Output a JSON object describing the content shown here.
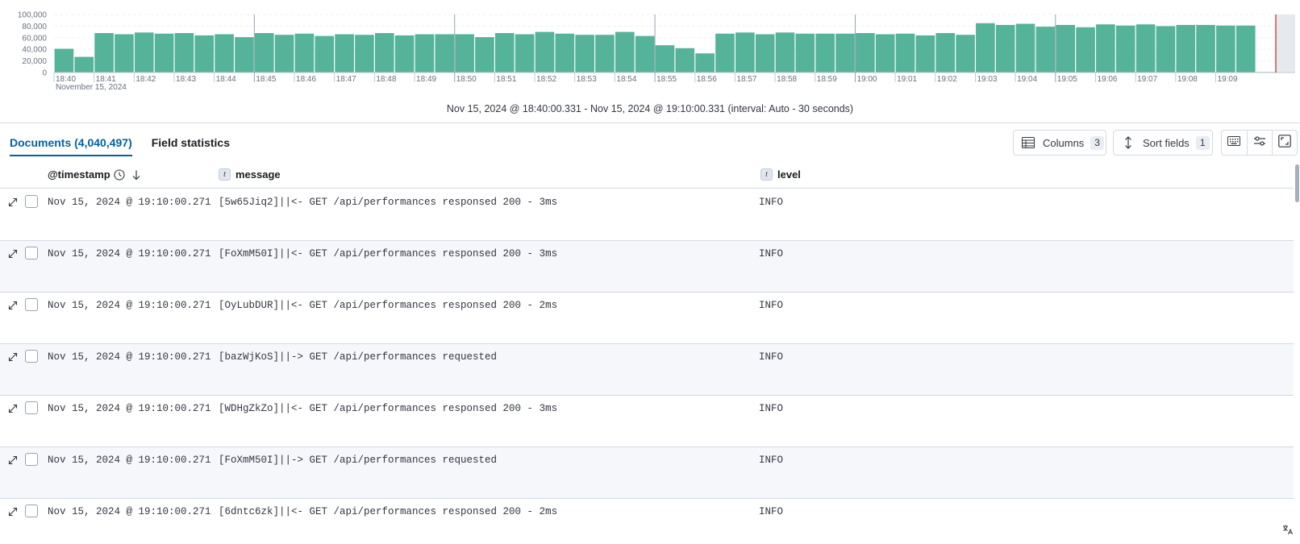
{
  "chart_data": {
    "type": "bar",
    "title": "",
    "xlabel": "",
    "ylabel": "",
    "date_label": "November 15, 2024",
    "ylim": [
      0,
      100000
    ],
    "y_ticks": [
      "100,000",
      "80,000",
      "60,000",
      "40,000",
      "20,000",
      "0"
    ],
    "x_ticks": [
      "18:40",
      "18:41",
      "18:42",
      "18:43",
      "18:44",
      "18:45",
      "18:46",
      "18:47",
      "18:48",
      "18:49",
      "18:50",
      "18:51",
      "18:52",
      "18:53",
      "18:54",
      "18:55",
      "18:56",
      "18:57",
      "18:58",
      "18:59",
      "19:00",
      "19:01",
      "19:02",
      "19:03",
      "19:04",
      "19:05",
      "19:06",
      "19:07",
      "19:08",
      "19:09"
    ],
    "bar_color": "#54b399",
    "values": [
      41000,
      27000,
      68000,
      66000,
      69000,
      67000,
      68000,
      64000,
      66000,
      61000,
      68000,
      65000,
      67000,
      63000,
      66000,
      65000,
      68000,
      64000,
      66000,
      66000,
      66000,
      61000,
      68000,
      66000,
      70000,
      67000,
      65000,
      65000,
      70000,
      63000,
      47000,
      42000,
      33000,
      67000,
      69000,
      66000,
      69000,
      67000,
      67000,
      67000,
      68000,
      66000,
      67000,
      64000,
      68000,
      65000,
      85000,
      82000,
      84000,
      79000,
      82000,
      78000,
      83000,
      81000,
      83000,
      80000,
      82000,
      82000,
      81000,
      81000,
      1000
    ]
  },
  "time_range": "Nov 15, 2024 @ 18:40:00.331 - Nov 15, 2024 @ 19:10:00.331 (interval: Auto - 30 seconds)",
  "tabs": [
    {
      "label": "Documents (4,040,497)"
    },
    {
      "label": "Field statistics"
    }
  ],
  "toolbar": {
    "columns_label": "Columns",
    "columns_count": "3",
    "sort_label": "Sort fields",
    "sort_count": "1",
    "icons": [
      "keyboard-icon",
      "display-settings-icon",
      "fullscreen-icon"
    ]
  },
  "columns": {
    "timestamp": "@timestamp",
    "message": "message",
    "level": "level",
    "type_token": "t"
  },
  "rows": [
    {
      "timestamp": "Nov 15, 2024 @ 19:10:00.271",
      "message": "[5w65Jiq2]||<- GET /api/performances responsed 200 - 3ms",
      "level": "INFO"
    },
    {
      "timestamp": "Nov 15, 2024 @ 19:10:00.271",
      "message": "[FoXmM50I]||<- GET /api/performances responsed 200 - 3ms",
      "level": "INFO"
    },
    {
      "timestamp": "Nov 15, 2024 @ 19:10:00.271",
      "message": "[OyLubDUR]||<- GET /api/performances responsed 200 - 2ms",
      "level": "INFO"
    },
    {
      "timestamp": "Nov 15, 2024 @ 19:10:00.271",
      "message": "[bazWjKoS]||-> GET /api/performances requested",
      "level": "INFO"
    },
    {
      "timestamp": "Nov 15, 2024 @ 19:10:00.271",
      "message": "[WDHgZkZo]||<- GET /api/performances responsed 200 - 3ms",
      "level": "INFO"
    },
    {
      "timestamp": "Nov 15, 2024 @ 19:10:00.271",
      "message": "[FoXmM50I]||-> GET /api/performances requested",
      "level": "INFO"
    },
    {
      "timestamp": "Nov 15, 2024 @ 19:10:00.271",
      "message": "[6dntc6zk]||<- GET /api/performances responsed 200 - 2ms",
      "level": "INFO"
    }
  ]
}
